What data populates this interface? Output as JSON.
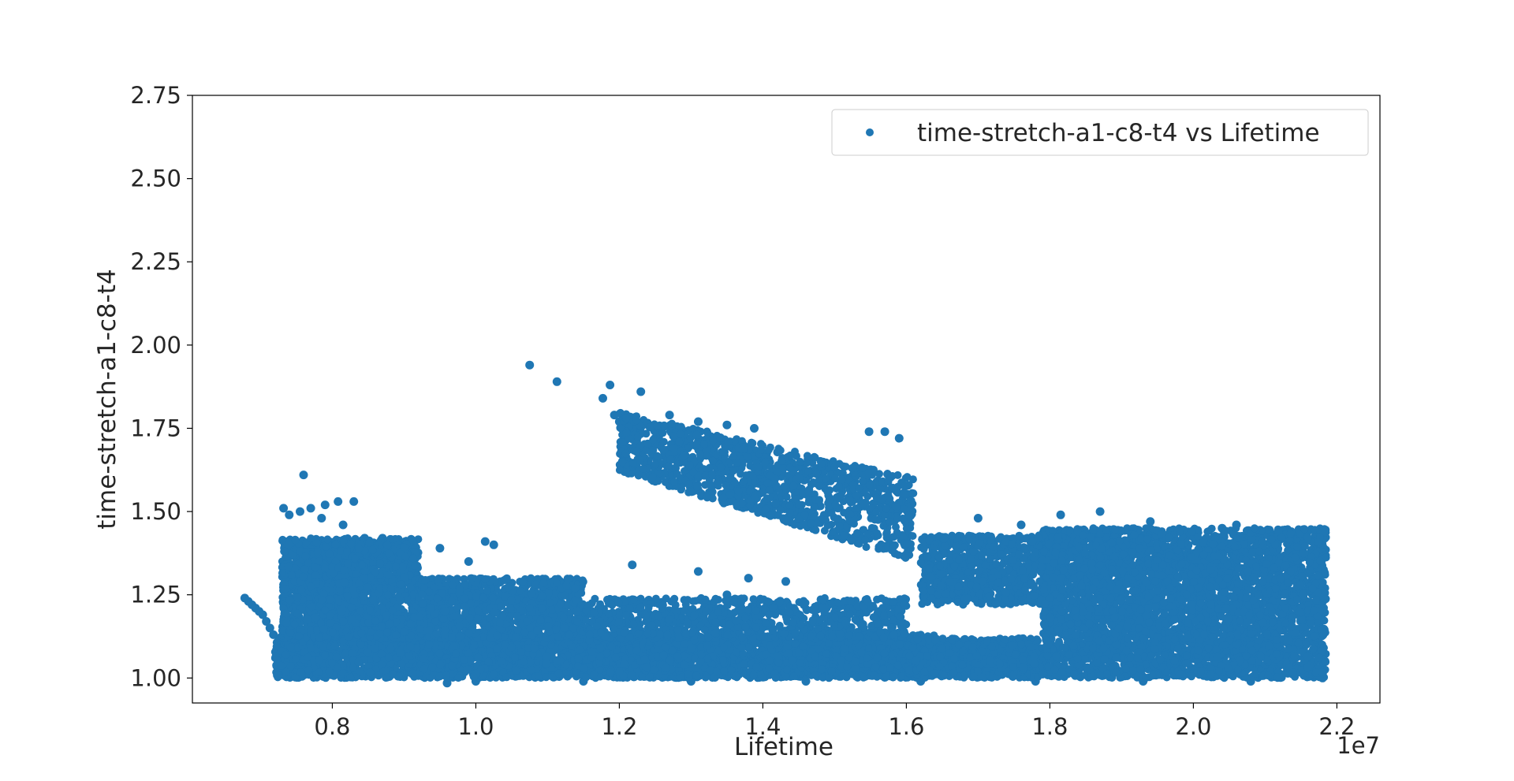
{
  "chart_data": {
    "type": "scatter",
    "title": "",
    "xlabel": "Lifetime",
    "ylabel": "time-stretch-a1-c8-t4",
    "x_offset_label": "1e7",
    "xlim": [
      6050000,
      22600000
    ],
    "ylim": [
      0.925,
      2.75
    ],
    "x_ticks": [
      8000000,
      10000000,
      12000000,
      14000000,
      16000000,
      18000000,
      20000000,
      22000000
    ],
    "x_tick_labels": [
      "0.8",
      "1.0",
      "1.2",
      "1.4",
      "1.6",
      "1.8",
      "2.0",
      "2.2"
    ],
    "y_ticks": [
      1.0,
      1.25,
      1.5,
      1.75,
      2.0,
      2.25,
      2.5,
      2.75
    ],
    "y_tick_labels": [
      "1.00",
      "1.25",
      "1.50",
      "1.75",
      "2.00",
      "2.25",
      "2.50",
      "2.75"
    ],
    "grid": false,
    "legend_position": "top-right",
    "marker_color": "#1f77b4",
    "series": [
      {
        "name": "time-stretch-a1-c8-t4 vs Lifetime",
        "points": [
          [
            6780000,
            1.24
          ],
          [
            6830000,
            1.23
          ],
          [
            6880000,
            1.22
          ],
          [
            6930000,
            1.21
          ],
          [
            6980000,
            1.2
          ],
          [
            7030000,
            1.19
          ],
          [
            7080000,
            1.17
          ],
          [
            7130000,
            1.15
          ],
          [
            7180000,
            1.13
          ],
          [
            7600000,
            1.61
          ],
          [
            7320000,
            1.51
          ],
          [
            7700000,
            1.51
          ],
          [
            7900000,
            1.52
          ],
          [
            8080000,
            1.53
          ],
          [
            8300000,
            1.53
          ],
          [
            7400000,
            1.49
          ],
          [
            7550000,
            1.5
          ],
          [
            7850000,
            1.48
          ],
          [
            8150000,
            1.46
          ],
          [
            8450000,
            1.42
          ],
          [
            8700000,
            1.42
          ],
          [
            9050000,
            1.38
          ],
          [
            9500000,
            1.39
          ],
          [
            9900000,
            1.35
          ],
          [
            10130000,
            1.41
          ],
          [
            10250000,
            1.4
          ],
          [
            10750000,
            1.94
          ],
          [
            11130000,
            1.89
          ],
          [
            11870000,
            1.88
          ],
          [
            11770000,
            1.84
          ],
          [
            12300000,
            1.86
          ],
          [
            11930000,
            1.79
          ],
          [
            12000000,
            1.77
          ],
          [
            12400000,
            1.76
          ],
          [
            12700000,
            1.79
          ],
          [
            13100000,
            1.77
          ],
          [
            13500000,
            1.76
          ],
          [
            13880000,
            1.75
          ],
          [
            14380000,
            1.65
          ],
          [
            14600000,
            1.62
          ],
          [
            15250000,
            1.63
          ],
          [
            15300000,
            1.61
          ],
          [
            15480000,
            1.74
          ],
          [
            15700000,
            1.74
          ],
          [
            15900000,
            1.72
          ],
          [
            12180000,
            1.34
          ],
          [
            13100000,
            1.32
          ],
          [
            13800000,
            1.3
          ],
          [
            14320000,
            1.29
          ],
          [
            13500000,
            1.25
          ],
          [
            17000000,
            1.48
          ],
          [
            17600000,
            1.46
          ],
          [
            18150000,
            1.49
          ],
          [
            18700000,
            1.5
          ],
          [
            19400000,
            1.47
          ],
          [
            20400000,
            1.45
          ],
          [
            20600000,
            1.46
          ],
          [
            21000000,
            1.44
          ],
          [
            21400000,
            1.41
          ],
          [
            21700000,
            1.4
          ],
          [
            9600000,
            0.985
          ],
          [
            10000000,
            0.99
          ],
          [
            11500000,
            0.99
          ],
          [
            13000000,
            0.99
          ],
          [
            14600000,
            0.99
          ],
          [
            16200000,
            0.99
          ],
          [
            17800000,
            0.99
          ],
          [
            19300000,
            0.99
          ],
          [
            20800000,
            0.99
          ],
          [
            21800000,
            1.0
          ]
        ],
        "dense_regions": [
          {
            "x_range": [
              7200000,
              16400000
            ],
            "y_range": [
              1.0,
              1.13
            ],
            "count": 4200
          },
          {
            "x_range": [
              7300000,
              9200000
            ],
            "y_range": [
              1.12,
              1.42
            ],
            "count": 1800
          },
          {
            "x_range": [
              9200000,
              11500000
            ],
            "y_range": [
              1.12,
              1.3
            ],
            "count": 1100
          },
          {
            "x_range": [
              11500000,
              16000000
            ],
            "y_range": [
              1.12,
              1.24
            ],
            "count": 900
          },
          {
            "x_range": [
              16000000,
              17900000
            ],
            "y_range": [
              1.0,
              1.12
            ],
            "count": 800
          },
          {
            "x_range": [
              17900000,
              21850000
            ],
            "y_range": [
              1.0,
              1.45
            ],
            "count": 4200
          },
          {
            "x_range": [
              16200000,
              18200000
            ],
            "y_range": [
              1.22,
              1.43
            ],
            "count": 900
          }
        ],
        "diagonal_band": {
          "x_range": [
            12000000,
            16100000
          ],
          "y_start": [
            1.62,
            1.8
          ],
          "y_end": [
            1.35,
            1.6
          ],
          "count": 1300
        }
      }
    ]
  }
}
